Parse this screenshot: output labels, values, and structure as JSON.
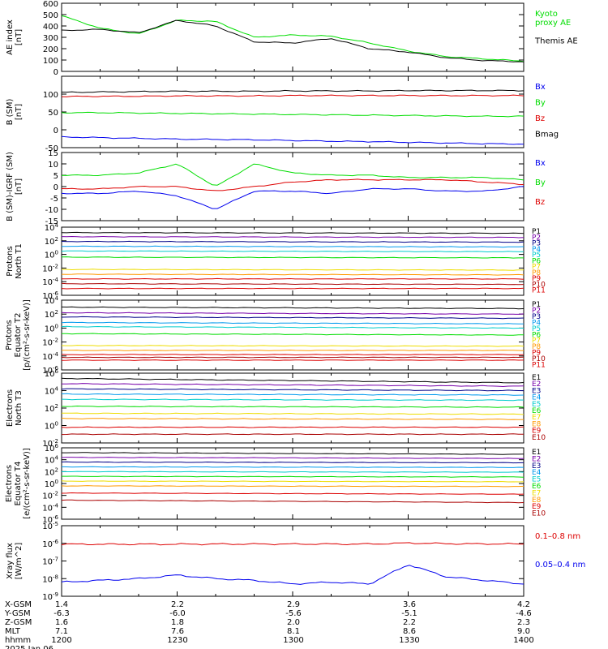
{
  "colors": {
    "black": "#000000",
    "blue": "#0000ee",
    "green": "#00dd00",
    "red": "#dd0000",
    "navy": "#000088",
    "purple": "#7700aa",
    "cyan": "#00cccc",
    "skyblue": "#0099ee",
    "teal": "#00bbaa",
    "yellow": "#eedd00",
    "orange": "#ff9900",
    "maroon": "#aa0000"
  },
  "chart_data": [
    {
      "type": "line",
      "ylabel": "AE index\n[nT]",
      "ylim": [
        0,
        600
      ],
      "yticks": [
        "0",
        "100",
        "200",
        "300",
        "400",
        "500",
        "600"
      ],
      "x": [
        "1200",
        "1210",
        "1220",
        "1230",
        "1240",
        "1250",
        "1300",
        "1310",
        "1320",
        "1330",
        "1340",
        "1350",
        "1400"
      ],
      "series": [
        {
          "name": "Kyoto\nproxy AE",
          "color": "green",
          "values": [
            490,
            380,
            330,
            450,
            440,
            300,
            320,
            310,
            250,
            180,
            130,
            110,
            90
          ]
        },
        {
          "name": "Themis AE",
          "color": "black",
          "values": [
            360,
            370,
            340,
            450,
            400,
            260,
            250,
            290,
            200,
            170,
            120,
            95,
            85
          ]
        }
      ]
    },
    {
      "type": "line",
      "ylabel": "B (SM)\n[nT]",
      "ylim": [
        -50,
        150
      ],
      "yticks": [
        "-50",
        "0",
        "50",
        "100"
      ],
      "series": [
        {
          "name": "Bx",
          "color": "blue",
          "values": [
            -20,
            -22,
            -24,
            -26,
            -27,
            -28,
            -30,
            -32,
            -33,
            -35,
            -37,
            -39,
            -40
          ]
        },
        {
          "name": "By",
          "color": "green",
          "values": [
            48,
            48,
            47,
            46,
            45,
            44,
            43,
            42,
            41,
            40,
            39,
            38,
            38
          ]
        },
        {
          "name": "Bz",
          "color": "red",
          "values": [
            93,
            94,
            94,
            95,
            95,
            95,
            96,
            96,
            96,
            96,
            96,
            96,
            96
          ]
        },
        {
          "name": "Bmag",
          "color": "black",
          "values": [
            105,
            106,
            107,
            108,
            108,
            108,
            109,
            109,
            109,
            110,
            110,
            110,
            110
          ]
        }
      ]
    },
    {
      "type": "line",
      "ylabel": "B (SM)-IGRF (SM)\n[nT]",
      "ylim": [
        -15,
        15
      ],
      "yticks": [
        "-15",
        "-10",
        "-5",
        "0",
        "5",
        "10",
        "15"
      ],
      "series": [
        {
          "name": "Bx",
          "color": "blue",
          "values": [
            -3,
            -3,
            -2,
            -4,
            -10,
            -2,
            -2,
            -3,
            -1,
            -1,
            -2,
            -2,
            0
          ]
        },
        {
          "name": "By",
          "color": "green",
          "values": [
            5,
            5,
            6,
            10,
            0,
            10,
            6,
            5,
            5,
            4,
            4,
            4,
            3
          ]
        },
        {
          "name": "Bz",
          "color": "red",
          "values": [
            -1,
            -1,
            0,
            0,
            -2,
            0,
            2,
            3,
            3,
            3,
            3,
            2,
            1
          ]
        }
      ]
    },
    {
      "type": "line",
      "ylabel": "Protons\nNorth T1",
      "ylog": true,
      "ylim": [
        -6,
        4
      ],
      "yticks": [
        "10^-6",
        "10^-4",
        "10^-2",
        "10^0",
        "10^2",
        "10^4"
      ],
      "series": [
        {
          "name": "P1",
          "color": "black",
          "logv": [
            3.2,
            3.1
          ]
        },
        {
          "name": "P2",
          "color": "purple",
          "logv": [
            2.6,
            2.5
          ]
        },
        {
          "name": "P3",
          "color": "navy",
          "logv": [
            1.9,
            1.8
          ]
        },
        {
          "name": "P4",
          "color": "skyblue",
          "logv": [
            1.2,
            1.1
          ]
        },
        {
          "name": "P5",
          "color": "cyan",
          "logv": [
            0.5,
            0.4
          ]
        },
        {
          "name": "P6",
          "color": "green",
          "logv": [
            -0.4,
            -0.5
          ]
        },
        {
          "name": "P7",
          "color": "yellow",
          "logv": [
            -2.2,
            -2.3
          ]
        },
        {
          "name": "P8",
          "color": "orange",
          "logv": [
            -2.9,
            -3.0
          ]
        },
        {
          "name": "P9",
          "color": "red",
          "logv": [
            -3.6,
            -3.6
          ]
        },
        {
          "name": "P10",
          "color": "maroon",
          "logv": [
            -4.3,
            -4.4
          ]
        },
        {
          "name": "P11",
          "color": "red",
          "logv": [
            -5.0,
            -5.0
          ]
        }
      ]
    },
    {
      "type": "line",
      "ylabel": "Protons\nEquator T2\n[p/(cm²-s-sr-keV)]",
      "ylog": true,
      "ylim": [
        -6,
        4
      ],
      "yticks": [
        "10^-6",
        "10^-4",
        "10^-2",
        "10^0",
        "10^2",
        "10^4"
      ],
      "series": [
        {
          "name": "P1",
          "color": "black",
          "logv": [
            3.0,
            2.8
          ]
        },
        {
          "name": "P2",
          "color": "purple",
          "logv": [
            2.2,
            2.0
          ]
        },
        {
          "name": "P3",
          "color": "navy",
          "logv": [
            1.6,
            1.4
          ]
        },
        {
          "name": "P4",
          "color": "skyblue",
          "logv": [
            0.8,
            0.6
          ]
        },
        {
          "name": "P5",
          "color": "cyan",
          "logv": [
            0.2,
            0.0
          ]
        },
        {
          "name": "P6",
          "color": "green",
          "logv": [
            -0.8,
            -1.0
          ]
        },
        {
          "name": "P7",
          "color": "yellow",
          "logv": [
            -2.5,
            -2.6
          ]
        },
        {
          "name": "P8",
          "color": "orange",
          "logv": [
            -3.2,
            -3.2
          ]
        },
        {
          "name": "P9",
          "color": "red",
          "logv": [
            -3.8,
            -3.8
          ]
        },
        {
          "name": "P10",
          "color": "maroon",
          "logv": [
            -4.2,
            -4.2
          ]
        },
        {
          "name": "P11",
          "color": "red",
          "logv": [
            -4.6,
            -4.6
          ]
        }
      ]
    },
    {
      "type": "line",
      "ylabel": "Electrons\nNorth T3",
      "ylog": true,
      "ylim": [
        -2,
        6
      ],
      "yticks": [
        "10^-2",
        "10^0",
        "10^2",
        "10^4",
        "10^6"
      ],
      "series": [
        {
          "name": "E1",
          "color": "black",
          "logv": [
            5.4,
            4.9
          ]
        },
        {
          "name": "E2",
          "color": "purple",
          "logv": [
            4.8,
            4.5
          ]
        },
        {
          "name": "E3",
          "color": "navy",
          "logv": [
            4.2,
            4.0
          ]
        },
        {
          "name": "E4",
          "color": "skyblue",
          "logv": [
            3.6,
            3.5
          ]
        },
        {
          "name": "E5",
          "color": "cyan",
          "logv": [
            3.0,
            2.9
          ]
        },
        {
          "name": "E6",
          "color": "green",
          "logv": [
            2.2,
            2.1
          ]
        },
        {
          "name": "E7",
          "color": "yellow",
          "logv": [
            1.4,
            1.3
          ]
        },
        {
          "name": "E8",
          "color": "orange",
          "logv": [
            0.8,
            0.7
          ]
        },
        {
          "name": "E9",
          "color": "red",
          "logv": [
            -0.2,
            -0.2
          ]
        },
        {
          "name": "E10",
          "color": "maroon",
          "logv": [
            -1.0,
            -1.0
          ]
        }
      ]
    },
    {
      "type": "line",
      "ylabel": "Electrons\nEquator T4\n[e/(cm²-s-sr-keV)]",
      "ylog": true,
      "ylim": [
        -6,
        6
      ],
      "yticks": [
        "10^-6",
        "10^-4",
        "10^-2",
        "10^0",
        "10^2",
        "10^4",
        "10^6"
      ],
      "series": [
        {
          "name": "E1",
          "color": "black",
          "logv": [
            5.2,
            4.9
          ]
        },
        {
          "name": "E2",
          "color": "purple",
          "logv": [
            4.4,
            4.2
          ]
        },
        {
          "name": "E3",
          "color": "navy",
          "logv": [
            3.6,
            3.5
          ]
        },
        {
          "name": "E4",
          "color": "skyblue",
          "logv": [
            2.8,
            2.7
          ]
        },
        {
          "name": "E5",
          "color": "cyan",
          "logv": [
            2.0,
            1.9
          ]
        },
        {
          "name": "E6",
          "color": "green",
          "logv": [
            1.2,
            1.1
          ]
        },
        {
          "name": "E7",
          "color": "yellow",
          "logv": [
            0.4,
            0.3
          ]
        },
        {
          "name": "E8",
          "color": "orange",
          "logv": [
            -0.4,
            -0.5
          ]
        },
        {
          "name": "E9",
          "color": "red",
          "logv": [
            -1.6,
            -1.8
          ]
        },
        {
          "name": "E10",
          "color": "maroon",
          "logv": [
            -2.8,
            -3.2
          ]
        }
      ]
    },
    {
      "type": "line",
      "ylabel": "Xray flux\n[W/m^2]",
      "ylog": true,
      "ylim": [
        -9,
        -5
      ],
      "yticks": [
        "10^-9",
        "10^-8",
        "10^-7",
        "10^-6",
        "10^-5"
      ],
      "series": [
        {
          "name": "0.1–0.8 nm",
          "color": "red",
          "logv": [
            -6.05,
            -6.05,
            -6.05,
            -6.05,
            -6.04,
            -6.04,
            -6.04,
            -6.04,
            -6.04,
            -5.98,
            -6.02,
            -6.03,
            -6.04
          ]
        },
        {
          "name": "0.05–0.4 nm",
          "color": "blue",
          "logv": [
            -8.2,
            -8.1,
            -8.0,
            -7.8,
            -8.0,
            -8.1,
            -8.3,
            -8.2,
            -8.3,
            -7.2,
            -7.9,
            -8.1,
            -8.3
          ]
        }
      ]
    }
  ],
  "footer": {
    "rows": [
      {
        "label": "X-GSM",
        "values": [
          "1.4",
          "2.2",
          "2.9",
          "3.6",
          "4.2"
        ]
      },
      {
        "label": "Y-GSM",
        "values": [
          "-6.3",
          "-6.0",
          "-5.6",
          "-5.1",
          "-4.6"
        ]
      },
      {
        "label": "Z-GSM",
        "values": [
          "1.6",
          "1.8",
          "2.0",
          "2.2",
          "2.3"
        ]
      },
      {
        "label": "MLT",
        "values": [
          "7.1",
          "7.6",
          "8.1",
          "8.6",
          "9.0"
        ]
      },
      {
        "label": "hhmm",
        "values": [
          "1200",
          "1230",
          "1300",
          "1330",
          "1400"
        ]
      }
    ],
    "date": "2025 Jan 06"
  }
}
